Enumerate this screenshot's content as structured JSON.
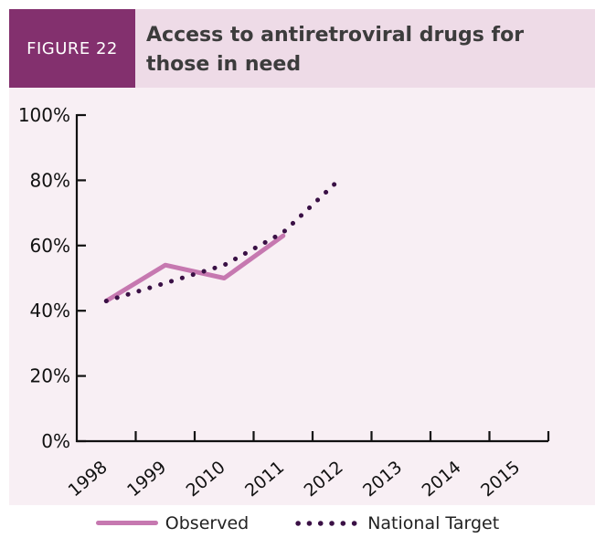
{
  "figure_label": "FIGURE 22",
  "title_line1": "Access to antiretroviral drugs for",
  "title_line2": "those in need",
  "colors": {
    "label_bg": "#83306e",
    "title_bg": "#eedbe7",
    "panel_bg": "#f8eff4",
    "observed": "#c678b0",
    "target": "#3a1045"
  },
  "chart_data": {
    "type": "line",
    "categories": [
      "1998",
      "1999",
      "2010",
      "2011",
      "2012",
      "2013",
      "2014",
      "2015"
    ],
    "y_ticks": [
      "0%",
      "20%",
      "40%",
      "60%",
      "80%",
      "100%"
    ],
    "ylim": [
      0,
      100
    ],
    "grid": false,
    "legend": "bottom",
    "series": [
      {
        "name": "Observed",
        "style": "solid",
        "color": "#c678b0",
        "points": [
          {
            "x": 0.5,
            "y": 43
          },
          {
            "x": 1.5,
            "y": 54
          },
          {
            "x": 2.5,
            "y": 50
          },
          {
            "x": 3.5,
            "y": 63
          }
        ]
      },
      {
        "name": "National Target",
        "style": "dotted",
        "color": "#3a1045",
        "points": [
          {
            "x": 0.5,
            "y": 43
          },
          {
            "x": 1.5,
            "y": 48.5
          },
          {
            "x": 2.5,
            "y": 54
          },
          {
            "x": 3.5,
            "y": 64
          },
          {
            "x": 4.5,
            "y": 81
          }
        ]
      }
    ]
  },
  "legend_items": {
    "observed": "Observed",
    "target": "National Target"
  }
}
